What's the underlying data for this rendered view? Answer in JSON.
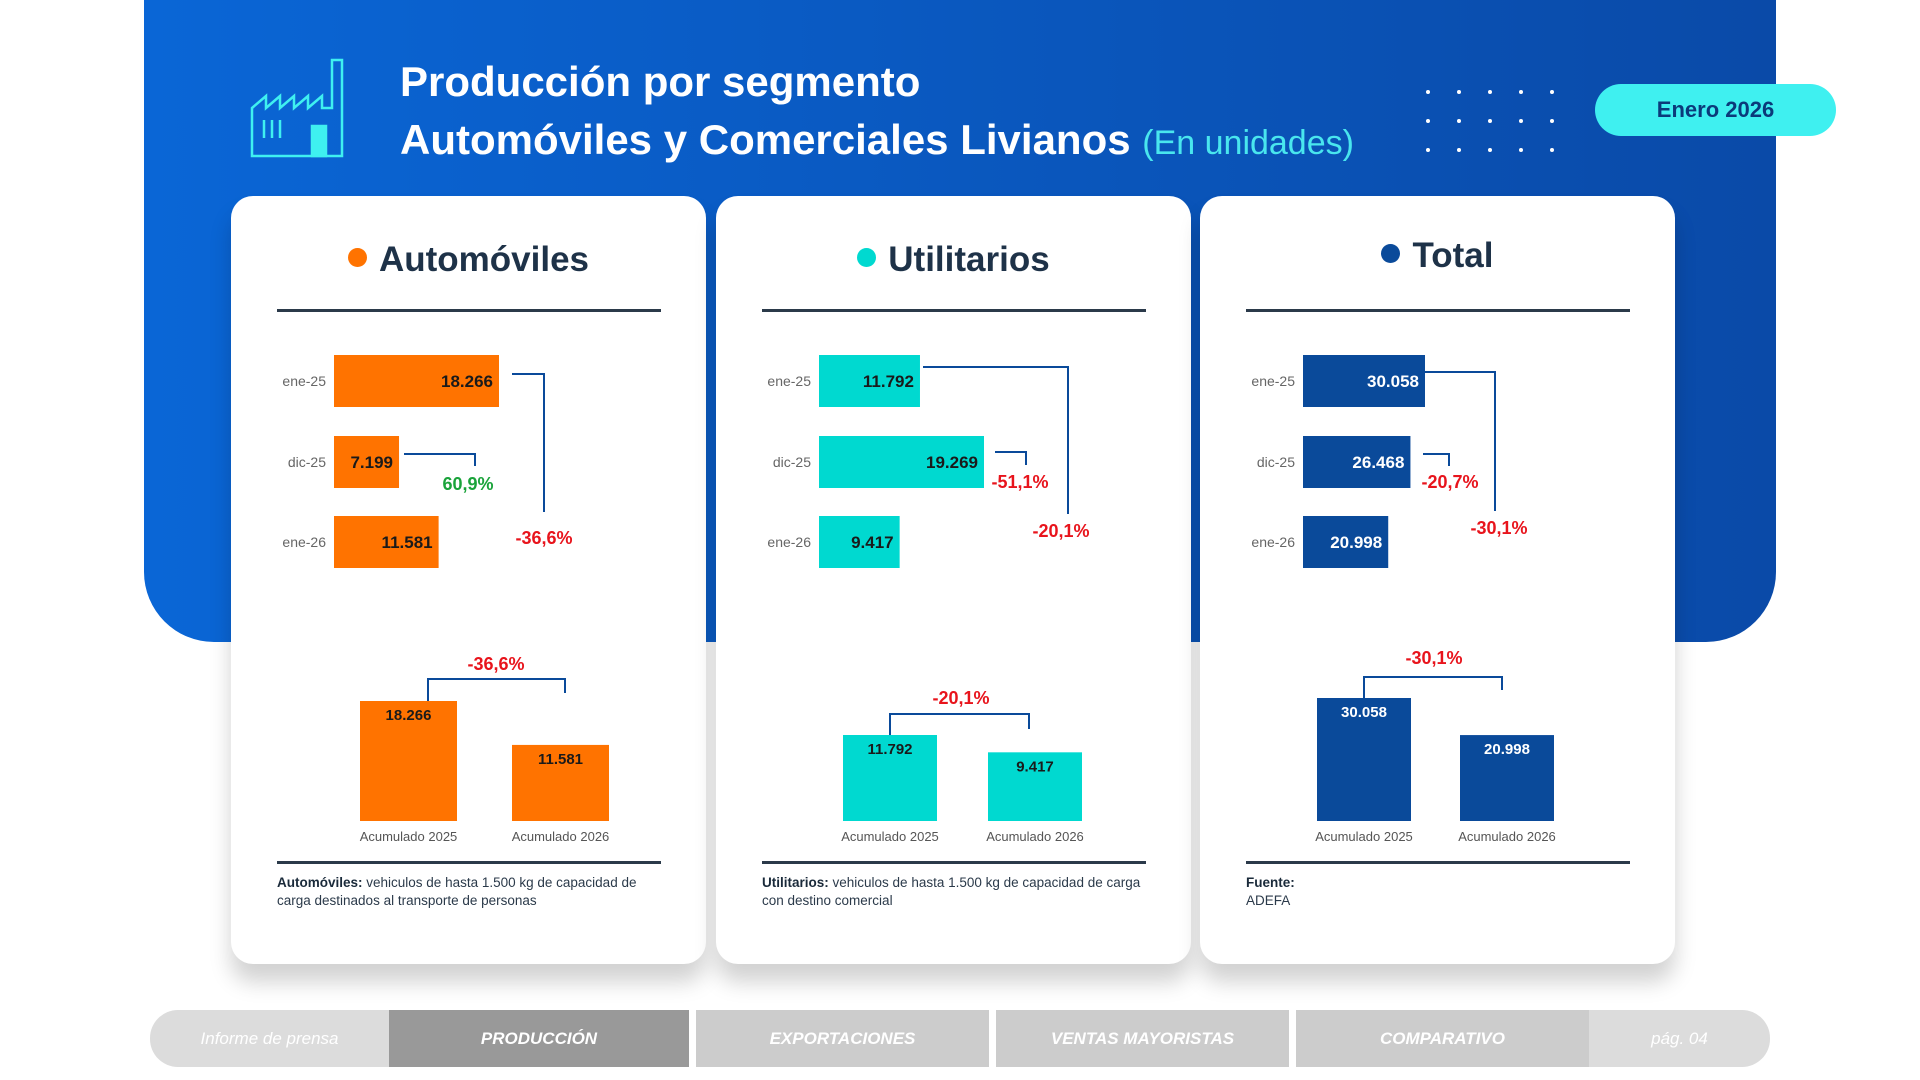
{
  "header": {
    "title_line1": "Producción por segmento",
    "title_line2": "Automóviles y Comerciales Livianos",
    "title_unit": "(En unidades)",
    "period_badge": "Enero 2026",
    "icon": "factory-icon"
  },
  "colors": {
    "automoviles": "#ff7300",
    "utilitarios": "#00d9d0",
    "total": "#0a4a9a",
    "negative": "#e8141c",
    "positive": "#1aa33a",
    "bracket": "#0a4a9a"
  },
  "chart_data": [
    {
      "type": "bar",
      "title": "Automóviles",
      "dot_color": "#ff7300",
      "monthly": {
        "orientation": "horizontal",
        "categories": [
          "ene-25",
          "dic-25",
          "ene-26"
        ],
        "values": [
          18266,
          7199,
          11581
        ],
        "value_labels": [
          "18.266",
          "7.199",
          "11.581"
        ],
        "comparisons": [
          {
            "between": [
              "dic-25",
              "ene-26"
            ],
            "label": "60,9%",
            "sign": "positive"
          },
          {
            "between": [
              "ene-25",
              "ene-26"
            ],
            "label": "-36,6%",
            "sign": "negative"
          }
        ]
      },
      "cumulative": {
        "orientation": "vertical",
        "categories": [
          "Acumulado 2025",
          "Acumulado 2026"
        ],
        "values": [
          18266,
          11581
        ],
        "value_labels": [
          "18.266",
          "11.581"
        ],
        "comparison": {
          "label": "-36,6%",
          "sign": "negative"
        }
      },
      "footnote_bold": "Automóviles:",
      "footnote": " vehiculos de hasta 1.500 kg de capacidad de carga destinados al transporte de personas"
    },
    {
      "type": "bar",
      "title": "Utilitarios",
      "dot_color": "#00d9d0",
      "monthly": {
        "orientation": "horizontal",
        "categories": [
          "ene-25",
          "dic-25",
          "ene-26"
        ],
        "values": [
          11792,
          19269,
          9417
        ],
        "value_labels": [
          "11.792",
          "19.269",
          "9.417"
        ],
        "comparisons": [
          {
            "between": [
              "dic-25",
              "ene-26"
            ],
            "label": "-51,1%",
            "sign": "negative"
          },
          {
            "between": [
              "ene-25",
              "ene-26"
            ],
            "label": "-20,1%",
            "sign": "negative"
          }
        ]
      },
      "cumulative": {
        "orientation": "vertical",
        "categories": [
          "Acumulado 2025",
          "Acumulado 2026"
        ],
        "values": [
          11792,
          9417
        ],
        "value_labels": [
          "11.792",
          "9.417"
        ],
        "comparison": {
          "label": "-20,1%",
          "sign": "negative"
        }
      },
      "footnote_bold": "Utilitarios:",
      "footnote": " vehiculos de hasta 1.500 kg de capacidad de carga con destino comercial"
    },
    {
      "type": "bar",
      "title": "Total",
      "dot_color": "#0a4a9a",
      "monthly": {
        "orientation": "horizontal",
        "categories": [
          "ene-25",
          "dic-25",
          "ene-26"
        ],
        "values": [
          30058,
          26468,
          20998
        ],
        "value_labels": [
          "30.058",
          "26.468",
          "20.998"
        ],
        "comparisons": [
          {
            "between": [
              "dic-25",
              "ene-26"
            ],
            "label": "-20,7%",
            "sign": "negative"
          },
          {
            "between": [
              "ene-25",
              "ene-26"
            ],
            "label": "-30,1%",
            "sign": "negative"
          }
        ]
      },
      "cumulative": {
        "orientation": "vertical",
        "categories": [
          "Acumulado 2025",
          "Acumulado 2026"
        ],
        "values": [
          30058,
          20998
        ],
        "value_labels": [
          "30.058",
          "20.998"
        ],
        "comparison": {
          "label": "-30,1%",
          "sign": "negative"
        }
      },
      "footnote_bold": "Fuente:",
      "footnote": "ADEFA"
    }
  ],
  "nav": {
    "items": [
      {
        "label": "Informe de prensa",
        "active": false
      },
      {
        "label": "PRODUCCIÓN",
        "active": true
      },
      {
        "label": "EXPORTACIONES",
        "active": false
      },
      {
        "label": "VENTAS MAYORISTAS",
        "active": false
      },
      {
        "label": "COMPARATIVO",
        "active": false
      },
      {
        "label": "pág. 04",
        "active": false
      }
    ]
  }
}
